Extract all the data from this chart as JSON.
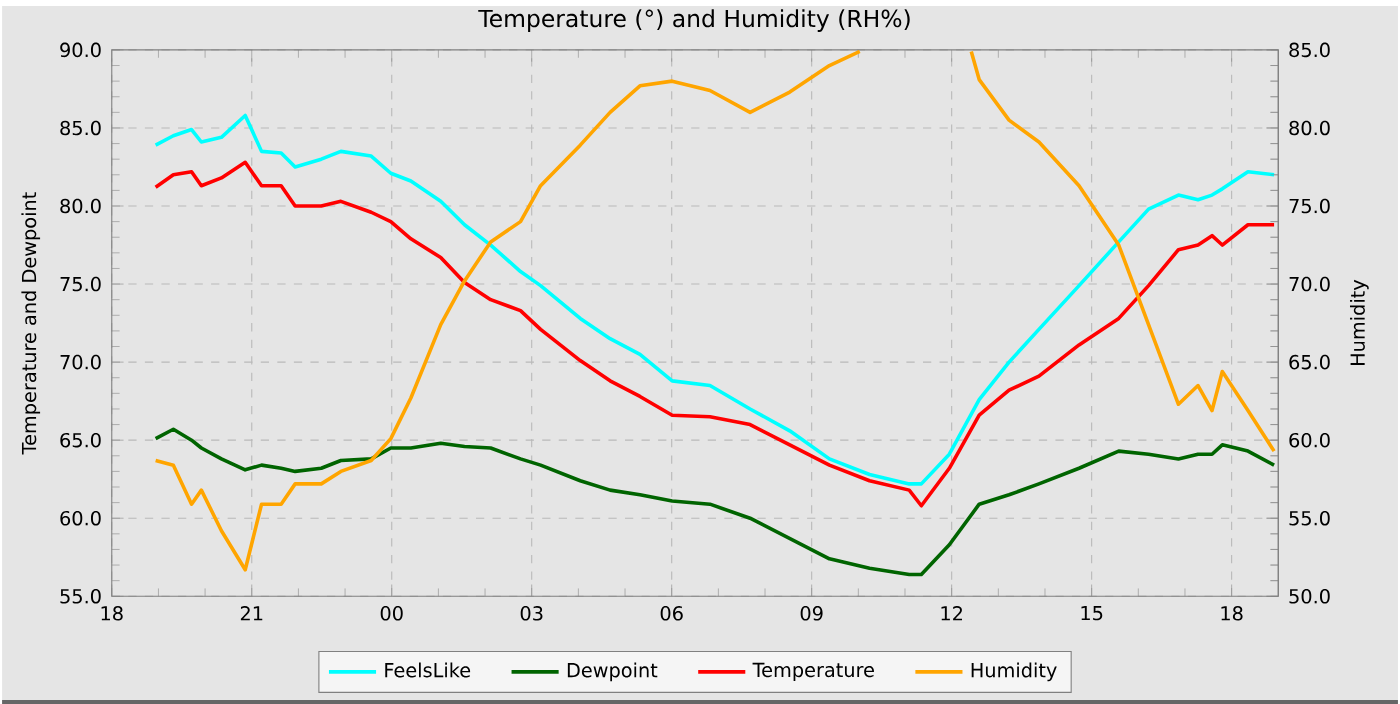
{
  "chart_data": {
    "type": "line",
    "title": "Temperature (°) and Humidity (RH%)",
    "ylabel": "Temperature and Dewpoint",
    "y2label": "Humidity",
    "xlim": [
      18,
      43
    ],
    "xticks": [
      {
        "value": 18,
        "label": "18"
      },
      {
        "value": 21,
        "label": "21"
      },
      {
        "value": 24,
        "label": "00"
      },
      {
        "value": 27,
        "label": "03"
      },
      {
        "value": 30,
        "label": "06"
      },
      {
        "value": 33,
        "label": "09"
      },
      {
        "value": 36,
        "label": "12"
      },
      {
        "value": 39,
        "label": "15"
      },
      {
        "value": 42,
        "label": "18"
      }
    ],
    "ylim": [
      55,
      90
    ],
    "yticks": [
      {
        "value": 55,
        "label": "55.0"
      },
      {
        "value": 60,
        "label": "60.0"
      },
      {
        "value": 65,
        "label": "65.0"
      },
      {
        "value": 70,
        "label": "70.0"
      },
      {
        "value": 75,
        "label": "75.0"
      },
      {
        "value": 80,
        "label": "80.0"
      },
      {
        "value": 85,
        "label": "85.0"
      },
      {
        "value": 90,
        "label": "90.0"
      }
    ],
    "y2lim": [
      50,
      85
    ],
    "y2ticks": [
      {
        "value": 50,
        "label": "50.0"
      },
      {
        "value": 55,
        "label": "55.0"
      },
      {
        "value": 60,
        "label": "60.0"
      },
      {
        "value": 65,
        "label": "65.0"
      },
      {
        "value": 70,
        "label": "70.0"
      },
      {
        "value": 75,
        "label": "75.0"
      },
      {
        "value": 80,
        "label": "80.0"
      },
      {
        "value": 85,
        "label": "85.0"
      }
    ],
    "grid": true,
    "legend": "bottom",
    "x": [
      18.94,
      19.32,
      19.71,
      19.92,
      20.35,
      20.86,
      21.21,
      21.63,
      21.93,
      22.49,
      22.91,
      23.56,
      23.98,
      24.41,
      25.05,
      25.56,
      26.12,
      26.76,
      27.19,
      28.04,
      28.68,
      29.32,
      30.01,
      30.82,
      31.68,
      32.53,
      33.38,
      34.24,
      35.09,
      35.35,
      35.95,
      36.59,
      37.23,
      37.87,
      38.73,
      39.58,
      40.22,
      40.86,
      41.28,
      41.58,
      41.8,
      42.35,
      42.91
    ],
    "series": [
      {
        "name": "FeelsLike",
        "color": "#00ffff",
        "values": [
          83.9,
          84.5,
          84.9,
          84.1,
          84.4,
          85.8,
          83.5,
          83.4,
          82.5,
          83.0,
          83.5,
          83.2,
          82.1,
          81.6,
          80.3,
          78.8,
          77.5,
          75.8,
          74.9,
          72.8,
          71.5,
          70.5,
          68.8,
          68.5,
          67.0,
          65.6,
          63.8,
          62.8,
          62.2,
          62.2,
          64.1,
          67.6,
          70.0,
          72.1,
          74.9,
          77.7,
          79.8,
          80.7,
          80.4,
          80.7,
          81.1,
          82.2,
          82.0
        ]
      },
      {
        "name": "Dewpoint",
        "color": "#006400",
        "values": [
          65.1,
          65.7,
          65.0,
          64.5,
          63.8,
          63.1,
          63.4,
          63.2,
          63.0,
          63.2,
          63.7,
          63.8,
          64.5,
          64.5,
          64.8,
          64.6,
          64.5,
          63.8,
          63.4,
          62.4,
          61.8,
          61.5,
          61.1,
          60.9,
          60.0,
          58.7,
          57.4,
          56.8,
          56.4,
          56.4,
          58.3,
          60.9,
          61.5,
          62.2,
          63.2,
          64.3,
          64.1,
          63.8,
          64.1,
          64.1,
          64.7,
          64.3,
          63.4
        ]
      },
      {
        "name": "Temperature",
        "color": "#ff0000",
        "values": [
          81.2,
          82.0,
          82.2,
          81.3,
          81.8,
          82.8,
          81.3,
          81.3,
          80.0,
          80.0,
          80.3,
          79.6,
          79.0,
          77.9,
          76.7,
          75.1,
          74.0,
          73.3,
          72.1,
          70.1,
          68.8,
          67.8,
          66.6,
          66.5,
          66.0,
          64.7,
          63.4,
          62.4,
          61.8,
          60.8,
          63.2,
          66.6,
          68.2,
          69.1,
          71.1,
          72.8,
          74.9,
          77.2,
          77.5,
          78.1,
          77.5,
          78.8,
          78.8
        ]
      },
      {
        "name": "Humidity",
        "color": "#ffa500",
        "axis": "y2",
        "x": [
          18.94,
          19.32,
          19.71,
          19.92,
          20.35,
          20.86,
          21.21,
          21.63,
          21.93,
          22.49,
          22.91,
          23.56,
          23.98,
          24.41,
          25.05,
          25.56,
          26.12,
          26.76,
          27.19,
          28.04,
          28.68,
          29.32,
          30.01,
          30.82,
          31.68,
          32.53,
          33.38,
          34.03,
          35.09,
          36.42,
          36.59,
          37.23,
          37.87,
          38.73,
          39.58,
          40.22,
          40.86,
          41.28,
          41.58,
          41.8,
          42.35,
          42.91
        ],
        "values": [
          58.7,
          58.4,
          55.9,
          56.8,
          54.2,
          51.7,
          55.9,
          55.9,
          57.2,
          57.2,
          58.0,
          58.7,
          60.1,
          62.7,
          67.4,
          70.2,
          72.7,
          74.0,
          76.3,
          78.9,
          81.0,
          82.7,
          83.0,
          82.4,
          81.0,
          82.3,
          84.0,
          84.9,
          null,
          84.9,
          83.1,
          80.5,
          79.1,
          76.3,
          72.5,
          67.4,
          62.3,
          63.5,
          61.9,
          64.4,
          61.9,
          59.3
        ]
      }
    ]
  }
}
